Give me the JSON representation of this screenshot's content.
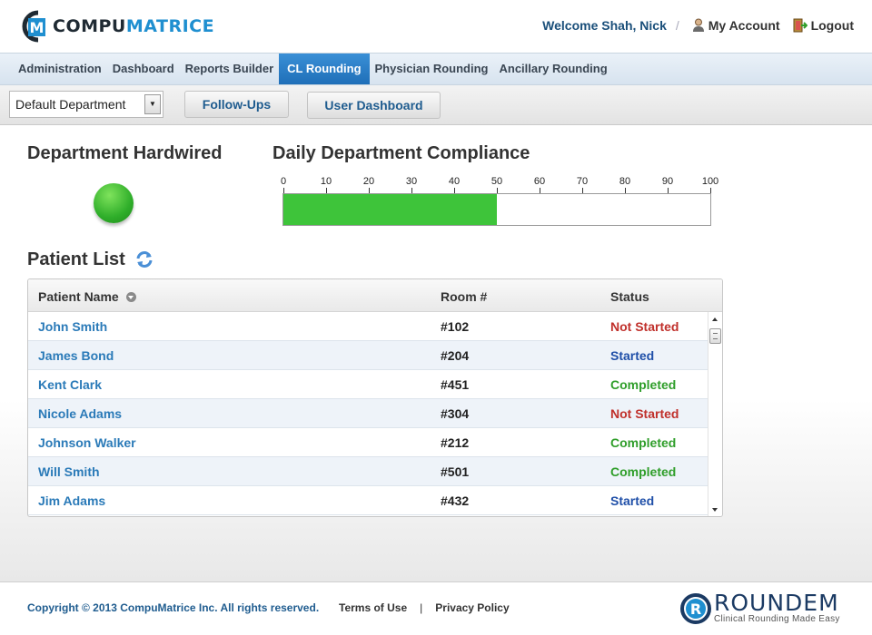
{
  "header": {
    "logo_part1": "COMPU",
    "logo_part2": "MATRICE",
    "logo_letter": "M",
    "welcome": "Welcome Shah, Nick",
    "separator": "/",
    "my_account": "My Account",
    "logout": "Logout"
  },
  "nav": {
    "items": [
      {
        "label": "Administration",
        "active": false
      },
      {
        "label": "Dashboard",
        "active": false
      },
      {
        "label": "Reports Builder",
        "active": false
      },
      {
        "label": "CL Rounding",
        "active": true
      },
      {
        "label": "Physician Rounding",
        "active": false
      },
      {
        "label": "Ancillary Rounding",
        "active": false
      }
    ]
  },
  "toolbar": {
    "department_select": "Default Department",
    "follow_ups": "Follow-Ups",
    "user_dashboard": "User Dashboard"
  },
  "hardwired": {
    "title": "Department Hardwired",
    "status_color": "#2fae2a"
  },
  "compliance": {
    "title": "Daily Department Compliance",
    "scale": [
      "0",
      "10",
      "20",
      "30",
      "40",
      "50",
      "60",
      "70",
      "80",
      "90",
      "100"
    ],
    "value_percent": 50,
    "fill_color": "#3ec43a"
  },
  "patient_list": {
    "title": "Patient List",
    "columns": [
      "Patient Name",
      "Room #",
      "Status"
    ],
    "rows": [
      {
        "name": "John Smith",
        "room": "#102",
        "status": "Not Started"
      },
      {
        "name": "James Bond",
        "room": "#204",
        "status": "Started"
      },
      {
        "name": "Kent Clark",
        "room": "#451",
        "status": "Completed"
      },
      {
        "name": "Nicole Adams",
        "room": "#304",
        "status": "Not Started"
      },
      {
        "name": "Johnson Walker",
        "room": "#212",
        "status": "Completed"
      },
      {
        "name": "Will Smith",
        "room": "#501",
        "status": "Completed"
      },
      {
        "name": "Jim Adams",
        "room": "#432",
        "status": "Started"
      }
    ],
    "status_colors": {
      "Not Started": "#c0302b",
      "Started": "#1f4fa8",
      "Completed": "#2f9e2a"
    }
  },
  "footer": {
    "copyright": "Copyright © 2013 CompuMatrice Inc. All rights reserved.",
    "terms": "Terms of Use",
    "divider": "|",
    "privacy": "Privacy Policy",
    "brand_name": "ROUNDEM",
    "brand_tagline": "Clinical Rounding Made Easy"
  }
}
